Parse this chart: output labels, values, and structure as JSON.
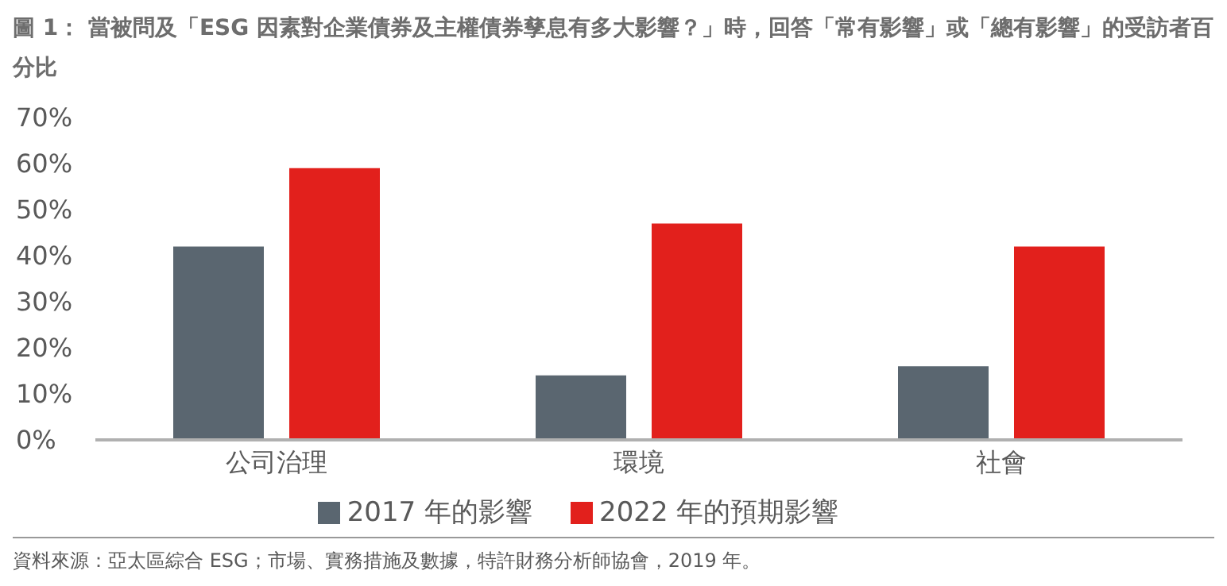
{
  "chart_data": {
    "type": "bar",
    "title": "圖 1： 當被問及「ESG 因素對企業債券及主權債券孳息有多大影響？」時，回答「常有影響」或「總有影響」的受訪者百分比",
    "categories": [
      "公司治理",
      "環境",
      "社會"
    ],
    "series": [
      {
        "name": "2017 年的影響",
        "color": "#5a6670",
        "values": [
          42,
          14,
          16
        ]
      },
      {
        "name": "2022 年的預期影響",
        "color": "#e2201c",
        "values": [
          59,
          47,
          42
        ]
      }
    ],
    "ylim": [
      0,
      70
    ],
    "yticks": [
      {
        "value": 0,
        "label": "0%"
      },
      {
        "value": 10,
        "label": "10%"
      },
      {
        "value": 20,
        "label": "20%"
      },
      {
        "value": 30,
        "label": "30%"
      },
      {
        "value": 40,
        "label": "40%"
      },
      {
        "value": 50,
        "label": "50%"
      },
      {
        "value": 60,
        "label": "60%"
      },
      {
        "value": 70,
        "label": "70%"
      }
    ],
    "grid": false,
    "legend": "bottom",
    "annotations": [
      "資料來源：亞太區綜合 ESG；市場、實務措施及數據，特許財務分析師協會，2019 年。"
    ]
  }
}
